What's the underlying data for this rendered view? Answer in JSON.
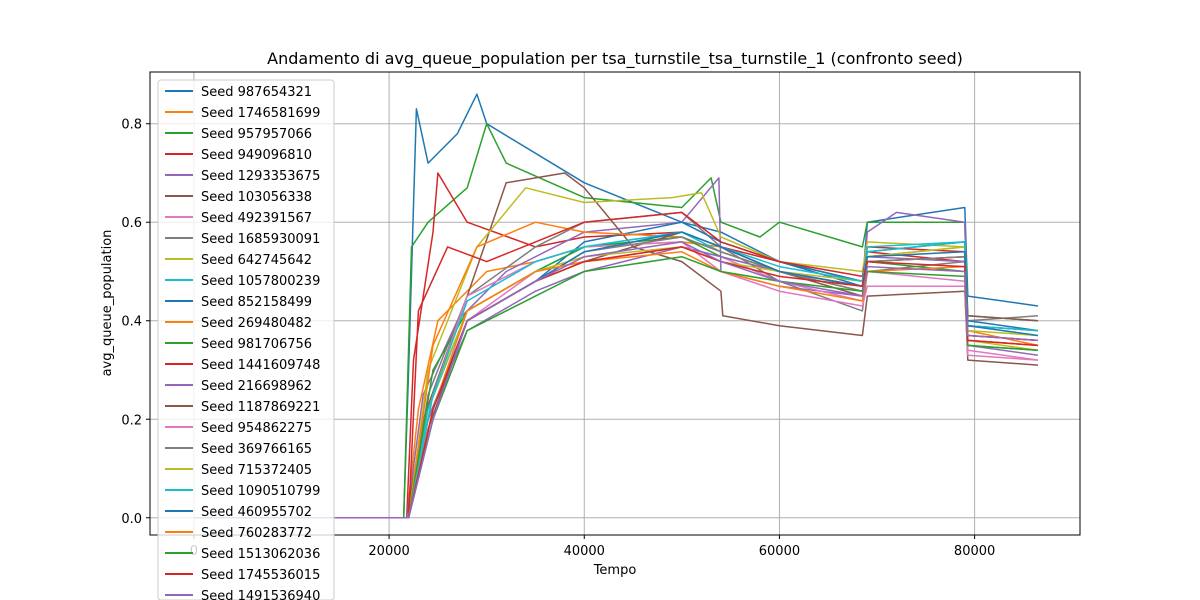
{
  "chart_data": {
    "type": "line",
    "title": "Andamento di avg_queue_population per tsa_turnstile_tsa_turnstile_1 (confronto seed)",
    "xlabel": "Tempo",
    "ylabel": "avg_queue_population",
    "xlim": [
      -4500,
      90800
    ],
    "ylim": [
      -0.035,
      0.905
    ],
    "xticks": [
      0,
      20000,
      40000,
      60000,
      80000
    ],
    "xtick_labels": [
      "0",
      "20000",
      "40000",
      "60000",
      "80000"
    ],
    "yticks": [
      0.0,
      0.2,
      0.4,
      0.6,
      0.8
    ],
    "ytick_labels": [
      "0.0",
      "0.2",
      "0.4",
      "0.6",
      "0.8"
    ],
    "grid": true,
    "legend_position": "upper-left",
    "series": [
      {
        "name": "Seed 987654321",
        "color": "#1f77b4",
        "x": [
          0,
          21500,
          22000,
          22800,
          24000,
          27000,
          29000,
          30000,
          40000,
          50000,
          54000,
          60000,
          68500,
          69000,
          79000,
          79300,
          86500
        ],
        "y": [
          0.0,
          0.0,
          0.3,
          0.83,
          0.72,
          0.78,
          0.86,
          0.8,
          0.68,
          0.6,
          0.58,
          0.52,
          0.47,
          0.6,
          0.63,
          0.45,
          0.43
        ]
      },
      {
        "name": "Seed 1746581699",
        "color": "#ff7f0e",
        "x": [
          0,
          21800,
          23000,
          25000,
          30000,
          35000,
          40000,
          50000,
          54000,
          60000,
          68500,
          69000,
          79000,
          79300,
          86500
        ],
        "y": [
          0.0,
          0.0,
          0.22,
          0.4,
          0.5,
          0.52,
          0.55,
          0.56,
          0.55,
          0.5,
          0.46,
          0.52,
          0.53,
          0.38,
          0.35
        ]
      },
      {
        "name": "Seed 957957066",
        "color": "#2ca02c",
        "x": [
          0,
          21500,
          22300,
          24000,
          28000,
          30000,
          32000,
          40000,
          50000,
          53000,
          54000,
          58000,
          60000,
          68500,
          69000,
          79000,
          79300,
          86500
        ],
        "y": [
          0.0,
          0.0,
          0.55,
          0.6,
          0.67,
          0.8,
          0.72,
          0.65,
          0.63,
          0.69,
          0.6,
          0.57,
          0.6,
          0.55,
          0.6,
          0.6,
          0.41,
          0.4
        ]
      },
      {
        "name": "Seed 949096810",
        "color": "#d62728",
        "x": [
          0,
          21800,
          22500,
          24500,
          25000,
          28000,
          35000,
          40000,
          50000,
          54000,
          60000,
          68500,
          69000,
          79000,
          79300,
          86500
        ],
        "y": [
          0.0,
          0.0,
          0.32,
          0.58,
          0.7,
          0.6,
          0.55,
          0.57,
          0.58,
          0.55,
          0.52,
          0.48,
          0.55,
          0.54,
          0.36,
          0.35
        ]
      },
      {
        "name": "Seed 1293353675",
        "color": "#9467bd",
        "x": [
          0,
          21800,
          23500,
          27000,
          32000,
          40000,
          50000,
          53800,
          54000,
          60000,
          68500,
          69000,
          72000,
          79000,
          79300,
          86500
        ],
        "y": [
          0.0,
          0.0,
          0.25,
          0.4,
          0.5,
          0.58,
          0.6,
          0.69,
          0.5,
          0.47,
          0.45,
          0.58,
          0.62,
          0.6,
          0.35,
          0.33
        ]
      },
      {
        "name": "Seed 103056338",
        "color": "#8c564b",
        "x": [
          0,
          21800,
          23500,
          28000,
          32000,
          38000,
          40000,
          45000,
          50000,
          54000,
          54200,
          60000,
          68500,
          69000,
          79000,
          79300,
          86500
        ],
        "y": [
          0.0,
          0.0,
          0.2,
          0.45,
          0.68,
          0.7,
          0.67,
          0.55,
          0.52,
          0.46,
          0.41,
          0.39,
          0.37,
          0.45,
          0.46,
          0.32,
          0.31
        ]
      },
      {
        "name": "Seed 492391567",
        "color": "#e377c2",
        "x": [
          0,
          21900,
          24000,
          28000,
          35000,
          40000,
          50000,
          54000,
          60000,
          68500,
          69000,
          79000,
          79300,
          86500
        ],
        "y": [
          0.0,
          0.0,
          0.2,
          0.4,
          0.5,
          0.52,
          0.55,
          0.53,
          0.48,
          0.44,
          0.5,
          0.48,
          0.34,
          0.32
        ]
      },
      {
        "name": "Seed 1685930091",
        "color": "#7f7f7f",
        "x": [
          0,
          22000,
          24000,
          28000,
          35000,
          40000,
          50000,
          54000,
          60000,
          68500,
          69000,
          79000,
          79300,
          86500
        ],
        "y": [
          0.0,
          0.0,
          0.25,
          0.45,
          0.55,
          0.6,
          0.62,
          0.55,
          0.48,
          0.42,
          0.5,
          0.52,
          0.4,
          0.41
        ]
      },
      {
        "name": "Seed 642745642",
        "color": "#bcbd22",
        "x": [
          0,
          22000,
          24000,
          29000,
          34000,
          40000,
          49000,
          52000,
          54000,
          60000,
          68500,
          69000,
          79000,
          79300,
          86500
        ],
        "y": [
          0.0,
          0.0,
          0.3,
          0.55,
          0.67,
          0.64,
          0.65,
          0.66,
          0.57,
          0.52,
          0.5,
          0.56,
          0.55,
          0.36,
          0.34
        ]
      },
      {
        "name": "Seed 1057800239",
        "color": "#17becf",
        "x": [
          0,
          22000,
          24000,
          28000,
          35000,
          40000,
          50000,
          54000,
          60000,
          68500,
          69000,
          79000,
          79300,
          86500
        ],
        "y": [
          0.0,
          0.0,
          0.22,
          0.42,
          0.5,
          0.55,
          0.58,
          0.54,
          0.5,
          0.47,
          0.55,
          0.56,
          0.39,
          0.38
        ]
      },
      {
        "name": "Seed 852158499",
        "color": "#1f77b4",
        "x": [
          0,
          22000,
          24000,
          28000,
          35000,
          40000,
          50000,
          54000,
          60000,
          68500,
          69000,
          79000,
          79300,
          86500
        ],
        "y": [
          0.0,
          0.0,
          0.2,
          0.4,
          0.48,
          0.56,
          0.6,
          0.56,
          0.52,
          0.48,
          0.54,
          0.56,
          0.4,
          0.38
        ]
      },
      {
        "name": "Seed 269480482",
        "color": "#ff7f0e",
        "x": [
          0,
          22000,
          24500,
          29000,
          35000,
          40000,
          50000,
          54000,
          60000,
          68500,
          69000,
          79000,
          79300,
          86500
        ],
        "y": [
          0.0,
          0.0,
          0.35,
          0.55,
          0.6,
          0.58,
          0.57,
          0.54,
          0.5,
          0.46,
          0.53,
          0.55,
          0.37,
          0.36
        ]
      },
      {
        "name": "Seed 981706756",
        "color": "#2ca02c",
        "x": [
          0,
          22000,
          24500,
          28000,
          35000,
          40000,
          50000,
          54000,
          60000,
          68500,
          69000,
          79000,
          79300,
          86500
        ],
        "y": [
          0.0,
          0.0,
          0.3,
          0.42,
          0.5,
          0.55,
          0.57,
          0.53,
          0.5,
          0.47,
          0.52,
          0.5,
          0.35,
          0.34
        ]
      },
      {
        "name": "Seed 1441609748",
        "color": "#d62728",
        "x": [
          0,
          22000,
          23000,
          26000,
          30000,
          35000,
          40000,
          50000,
          54000,
          60000,
          68500,
          69000,
          79000,
          79300,
          86500
        ],
        "y": [
          0.0,
          0.0,
          0.42,
          0.55,
          0.52,
          0.56,
          0.6,
          0.62,
          0.56,
          0.52,
          0.49,
          0.54,
          0.52,
          0.37,
          0.36
        ]
      },
      {
        "name": "Seed 216698962",
        "color": "#9467bd",
        "x": [
          0,
          22000,
          24000,
          28000,
          35000,
          40000,
          50000,
          54000,
          60000,
          68500,
          69000,
          79000,
          79300,
          86500
        ],
        "y": [
          0.0,
          0.0,
          0.2,
          0.38,
          0.46,
          0.5,
          0.55,
          0.53,
          0.5,
          0.47,
          0.53,
          0.52,
          0.37,
          0.36
        ]
      },
      {
        "name": "Seed 1187869221",
        "color": "#8c564b",
        "x": [
          0,
          22000,
          24000,
          28000,
          35000,
          40000,
          50000,
          54000,
          60000,
          68500,
          69000,
          79000,
          79300,
          86500
        ],
        "y": [
          0.0,
          0.0,
          0.18,
          0.4,
          0.48,
          0.52,
          0.58,
          0.55,
          0.5,
          0.45,
          0.52,
          0.53,
          0.41,
          0.4
        ]
      },
      {
        "name": "Seed 954862275",
        "color": "#e377c2",
        "x": [
          0,
          22000,
          24500,
          28000,
          35000,
          40000,
          50000,
          54000,
          60000,
          68500,
          69000,
          79000,
          79300,
          86500
        ],
        "y": [
          0.0,
          0.0,
          0.25,
          0.45,
          0.52,
          0.55,
          0.56,
          0.5,
          0.46,
          0.43,
          0.47,
          0.47,
          0.33,
          0.32
        ]
      },
      {
        "name": "Seed 369766165",
        "color": "#7f7f7f",
        "x": [
          0,
          22000,
          24500,
          28000,
          35000,
          40000,
          50000,
          54000,
          60000,
          68500,
          69000,
          79000,
          79300,
          86500
        ],
        "y": [
          0.0,
          0.0,
          0.22,
          0.4,
          0.48,
          0.54,
          0.57,
          0.54,
          0.5,
          0.46,
          0.52,
          0.53,
          0.39,
          0.38
        ]
      },
      {
        "name": "Seed 715372405",
        "color": "#bcbd22",
        "x": [
          0,
          22000,
          24500,
          28000,
          35000,
          40000,
          50000,
          54000,
          60000,
          68500,
          69000,
          79000,
          79300,
          86500
        ],
        "y": [
          0.0,
          0.0,
          0.25,
          0.42,
          0.5,
          0.53,
          0.55,
          0.52,
          0.5,
          0.48,
          0.53,
          0.55,
          0.38,
          0.37
        ]
      },
      {
        "name": "Seed 1090510799",
        "color": "#17becf",
        "x": [
          0,
          22000,
          24500,
          28000,
          35000,
          40000,
          50000,
          54000,
          60000,
          68500,
          69000,
          79000,
          79300,
          86500
        ],
        "y": [
          0.0,
          0.0,
          0.25,
          0.44,
          0.52,
          0.55,
          0.58,
          0.55,
          0.51,
          0.48,
          0.54,
          0.56,
          0.39,
          0.38
        ]
      },
      {
        "name": "Seed 460955702",
        "color": "#1f77b4",
        "x": [
          0,
          22000,
          24500,
          28000,
          35000,
          40000,
          50000,
          54000,
          60000,
          68500,
          69000,
          79000,
          79300,
          86500
        ],
        "y": [
          0.0,
          0.0,
          0.2,
          0.4,
          0.48,
          0.54,
          0.58,
          0.55,
          0.5,
          0.47,
          0.53,
          0.54,
          0.39,
          0.37
        ]
      },
      {
        "name": "Seed 760283772",
        "color": "#ff7f0e",
        "x": [
          0,
          22000,
          24500,
          28000,
          35000,
          40000,
          50000,
          54000,
          60000,
          68500,
          69000,
          79000,
          79300,
          86500
        ],
        "y": [
          0.0,
          0.0,
          0.22,
          0.42,
          0.5,
          0.52,
          0.54,
          0.5,
          0.47,
          0.44,
          0.5,
          0.51,
          0.36,
          0.35
        ]
      },
      {
        "name": "Seed 1513062036",
        "color": "#2ca02c",
        "x": [
          0,
          22000,
          24500,
          28000,
          35000,
          40000,
          50000,
          54000,
          60000,
          68500,
          69000,
          79000,
          79300,
          86500
        ],
        "y": [
          0.0,
          0.0,
          0.2,
          0.38,
          0.45,
          0.5,
          0.53,
          0.5,
          0.48,
          0.46,
          0.5,
          0.49,
          0.35,
          0.34
        ]
      },
      {
        "name": "Seed 1745536015",
        "color": "#d62728",
        "x": [
          0,
          22000,
          24500,
          28000,
          35000,
          40000,
          50000,
          54000,
          60000,
          68500,
          69000,
          79000,
          79300,
          86500
        ],
        "y": [
          0.0,
          0.0,
          0.22,
          0.4,
          0.48,
          0.52,
          0.55,
          0.52,
          0.49,
          0.47,
          0.52,
          0.51,
          0.36,
          0.35
        ]
      },
      {
        "name": "Seed 1491536940",
        "color": "#9467bd",
        "x": [
          0,
          22000,
          24500,
          28000,
          35000,
          40000,
          50000,
          54000,
          60000,
          68500,
          69000,
          79000,
          79300,
          86500
        ],
        "y": [
          0.0,
          0.0,
          0.2,
          0.4,
          0.48,
          0.53,
          0.56,
          0.52,
          0.48,
          0.45,
          0.51,
          0.5,
          0.37,
          0.36
        ]
      }
    ]
  }
}
